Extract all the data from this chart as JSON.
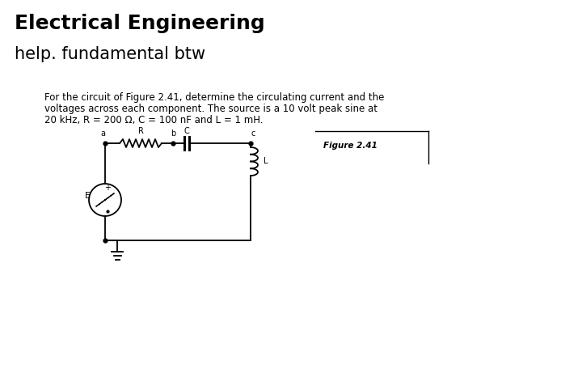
{
  "title": "Electrical Engineering",
  "subtitle": "help. fundamental btw",
  "problem_line1": "For the circuit of Figure 2.41, determine the circulating current and the",
  "problem_line2": "voltages across each component. The source is a 10 volt peak sine at",
  "problem_line3": "20 kHz, R = 200 Ω, C = 100 nF and L = 1 mH.",
  "figure_label": "Figure 2.41",
  "bg_color": "#ffffff",
  "title_fontsize": 18,
  "subtitle_fontsize": 15,
  "problem_fontsize": 8.5,
  "figure_label_fontsize": 7.5
}
